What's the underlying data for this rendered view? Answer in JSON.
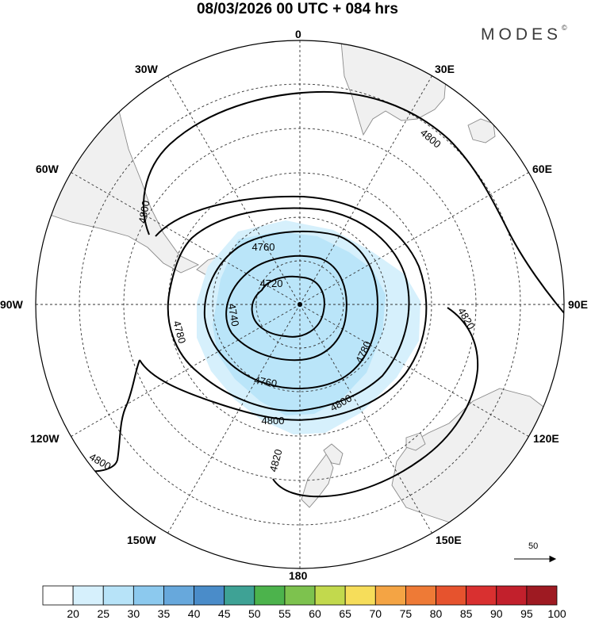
{
  "title": "08/03/2026  00 UTC  + 084 hrs",
  "brand": "MODES",
  "brand_mark": "©",
  "longitude_labels": {
    "n": "0",
    "ne": "30E",
    "ene": "60E",
    "e": "90E",
    "ese": "120E",
    "se": "150E",
    "s": "180",
    "sw": "150W",
    "wsw": "120W",
    "w": "90W",
    "wnw": "60W",
    "nw": "30W"
  },
  "contours": {
    "c4720": "4720",
    "c4740": "4740",
    "c4760a": "4760",
    "c4760b": "4760",
    "c4780a": "4780",
    "c4780b": "4780",
    "c4800a": "4800",
    "c4800b": "4800",
    "c4800c": "4800",
    "c4800d": "4800",
    "c4800e": "4800",
    "c4820a": "4820",
    "c4820b": "4820"
  },
  "wind_reference": "50",
  "colorbar": {
    "labels": [
      "20",
      "25",
      "30",
      "35",
      "40",
      "45",
      "50",
      "55",
      "60",
      "65",
      "70",
      "75",
      "80",
      "85",
      "90",
      "95",
      "100"
    ],
    "colors": [
      "#ffffff",
      "#d6f0fc",
      "#b7e3f8",
      "#8cc9ee",
      "#67a8dc",
      "#4a8cc9",
      "#3ea295",
      "#4cb34c",
      "#7dc24e",
      "#c2d94d",
      "#f6dd5a",
      "#f4a444",
      "#ee7a36",
      "#e6532e",
      "#d93030",
      "#c2202c",
      "#9e1a22"
    ]
  },
  "colors": {
    "land": "#f0f0f0",
    "coast": "#8a8a8a",
    "contour": "#000000",
    "shade_light": "#d6f0fc",
    "shade_mid": "#b7e3f8"
  }
}
